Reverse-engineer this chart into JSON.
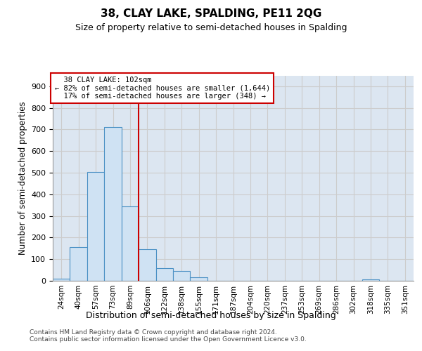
{
  "title": "38, CLAY LAKE, SPALDING, PE11 2QG",
  "subtitle": "Size of property relative to semi-detached houses in Spalding",
  "xlabel": "Distribution of semi-detached houses by size in Spalding",
  "ylabel": "Number of semi-detached properties",
  "footnote1": "Contains HM Land Registry data © Crown copyright and database right 2024.",
  "footnote2": "Contains public sector information licensed under the Open Government Licence v3.0.",
  "property_label": "38 CLAY LAKE: 102sqm",
  "smaller_pct": 82,
  "smaller_count": "1,644",
  "larger_pct": 17,
  "larger_count": "348",
  "categories": [
    "24sqm",
    "40sqm",
    "57sqm",
    "73sqm",
    "89sqm",
    "106sqm",
    "122sqm",
    "138sqm",
    "155sqm",
    "171sqm",
    "187sqm",
    "204sqm",
    "220sqm",
    "237sqm",
    "253sqm",
    "269sqm",
    "286sqm",
    "302sqm",
    "318sqm",
    "335sqm",
    "351sqm"
  ],
  "values": [
    10,
    155,
    505,
    710,
    345,
    145,
    60,
    45,
    15,
    0,
    0,
    0,
    0,
    0,
    0,
    0,
    0,
    0,
    8,
    0,
    0
  ],
  "bar_color": "#cfe2f3",
  "bar_edge_color": "#4a90c4",
  "line_color": "#cc0000",
  "grid_color": "#cccccc",
  "background_color": "#dce6f1",
  "ylim_max": 950,
  "yticks": [
    0,
    100,
    200,
    300,
    400,
    500,
    600,
    700,
    800,
    900
  ],
  "vline_x": 4.5
}
